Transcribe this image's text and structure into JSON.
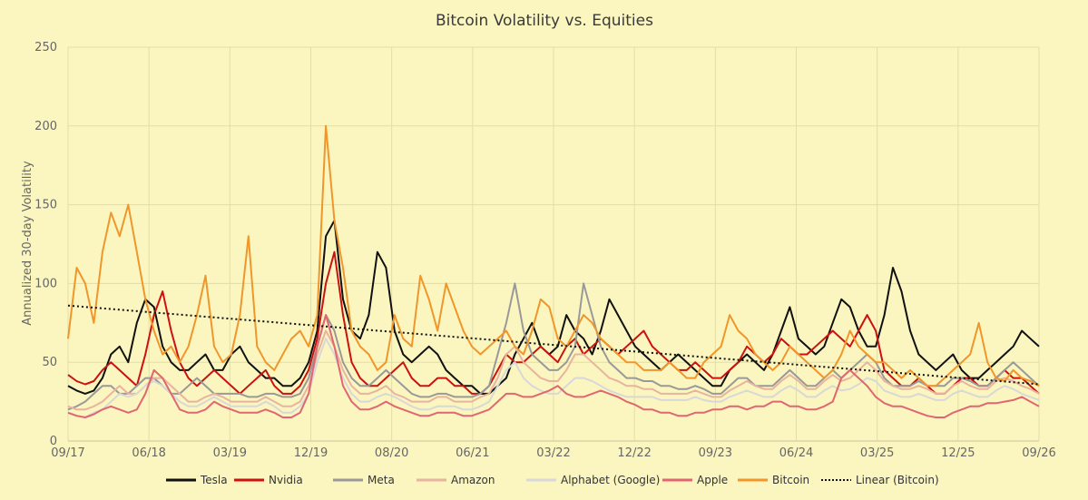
{
  "chart_data": {
    "type": "line",
    "title": "Bitcoin Volatility vs. Equities",
    "ylabel": "Annualized 30-day Volatility",
    "xlabel": "",
    "ylim": [
      0,
      250
    ],
    "yticks": [
      0,
      50,
      100,
      150,
      200,
      250
    ],
    "x_tick_labels": [
      "09/17",
      "06/18",
      "03/19",
      "12/19",
      "08/20",
      "06/21",
      "03/22",
      "12/22",
      "09/23",
      "06/24",
      "03/25",
      "12/25",
      "09/26"
    ],
    "grid": true,
    "legend_position": "bottom",
    "series": [
      {
        "name": "Tesla",
        "color": "#111111",
        "dash": "solid",
        "values": [
          35,
          32,
          30,
          32,
          40,
          55,
          60,
          50,
          75,
          90,
          85,
          60,
          50,
          45,
          45,
          50,
          55,
          45,
          45,
          55,
          60,
          50,
          45,
          40,
          40,
          35,
          35,
          40,
          50,
          70,
          130,
          140,
          90,
          70,
          65,
          80,
          120,
          110,
          70,
          55,
          50,
          55,
          60,
          55,
          45,
          40,
          35,
          35,
          30,
          30,
          35,
          40,
          55,
          65,
          75,
          60,
          55,
          60,
          80,
          70,
          65,
          55,
          70,
          90,
          80,
          70,
          60,
          55,
          50,
          45,
          50,
          55,
          50,
          45,
          40,
          35,
          35,
          45,
          50,
          55,
          50,
          45,
          55,
          70,
          85,
          65,
          60,
          55,
          60,
          75,
          90,
          85,
          70,
          60,
          60,
          80,
          110,
          95,
          70,
          55,
          50,
          45,
          50,
          55,
          45,
          40,
          40,
          45,
          50,
          55,
          60,
          70,
          65,
          60
        ]
      },
      {
        "name": "Nvidia",
        "color": "#cc1111",
        "dash": "solid",
        "values": [
          42,
          38,
          36,
          38,
          45,
          50,
          45,
          40,
          35,
          55,
          80,
          95,
          70,
          50,
          40,
          35,
          40,
          45,
          40,
          35,
          30,
          35,
          40,
          45,
          35,
          30,
          30,
          35,
          45,
          65,
          100,
          120,
          80,
          50,
          40,
          35,
          35,
          40,
          45,
          50,
          40,
          35,
          35,
          40,
          40,
          35,
          35,
          30,
          30,
          35,
          45,
          55,
          50,
          50,
          55,
          60,
          55,
          50,
          60,
          65,
          55,
          60,
          65,
          60,
          55,
          60,
          65,
          70,
          60,
          55,
          50,
          45,
          45,
          50,
          45,
          40,
          40,
          45,
          50,
          60,
          55,
          50,
          55,
          65,
          60,
          55,
          55,
          60,
          65,
          70,
          65,
          60,
          70,
          80,
          70,
          45,
          40,
          35,
          35,
          40,
          35,
          30,
          30,
          35,
          40,
          40,
          35,
          35,
          40,
          45,
          40,
          40,
          35,
          30
        ]
      },
      {
        "name": "Meta",
        "color": "#999999",
        "dash": "solid",
        "values": [
          20,
          22,
          25,
          30,
          35,
          35,
          30,
          30,
          35,
          40,
          40,
          35,
          30,
          30,
          35,
          40,
          35,
          30,
          30,
          30,
          30,
          28,
          28,
          30,
          30,
          28,
          28,
          30,
          40,
          60,
          80,
          70,
          50,
          40,
          35,
          35,
          40,
          45,
          40,
          35,
          30,
          28,
          28,
          30,
          30,
          28,
          28,
          28,
          30,
          35,
          55,
          75,
          100,
          70,
          55,
          50,
          45,
          45,
          50,
          60,
          100,
          80,
          60,
          50,
          45,
          40,
          40,
          38,
          38,
          35,
          35,
          33,
          33,
          35,
          33,
          30,
          30,
          35,
          40,
          40,
          35,
          35,
          35,
          40,
          45,
          40,
          35,
          35,
          40,
          45,
          40,
          45,
          50,
          55,
          50,
          40,
          35,
          35,
          35,
          38,
          35,
          35,
          35,
          40,
          40,
          38,
          35,
          35,
          40,
          45,
          50,
          45,
          40,
          35
        ]
      },
      {
        "name": "Amazon",
        "color": "#e8b4a0",
        "dash": "solid",
        "values": [
          22,
          20,
          20,
          22,
          25,
          30,
          35,
          30,
          30,
          35,
          40,
          40,
          35,
          30,
          25,
          25,
          28,
          30,
          28,
          25,
          25,
          25,
          25,
          28,
          25,
          22,
          22,
          25,
          35,
          55,
          70,
          60,
          45,
          35,
          30,
          30,
          32,
          35,
          30,
          28,
          25,
          25,
          25,
          28,
          28,
          25,
          25,
          25,
          28,
          30,
          40,
          55,
          60,
          50,
          45,
          40,
          38,
          38,
          45,
          55,
          55,
          50,
          45,
          40,
          38,
          35,
          35,
          33,
          33,
          30,
          30,
          30,
          30,
          32,
          30,
          28,
          28,
          32,
          35,
          38,
          35,
          33,
          33,
          38,
          42,
          38,
          33,
          33,
          38,
          42,
          38,
          40,
          45,
          50,
          45,
          38,
          35,
          33,
          33,
          35,
          33,
          30,
          30,
          35,
          38,
          35,
          33,
          33,
          38,
          40,
          38,
          35,
          33,
          30
        ]
      },
      {
        "name": "Alphabet (Google)",
        "color": "#d8d8d8",
        "dash": "solid",
        "values": [
          18,
          16,
          15,
          18,
          20,
          25,
          30,
          28,
          30,
          35,
          38,
          35,
          30,
          25,
          22,
          22,
          25,
          28,
          25,
          22,
          22,
          22,
          22,
          25,
          22,
          18,
          18,
          22,
          30,
          50,
          65,
          55,
          40,
          30,
          25,
          25,
          28,
          30,
          28,
          25,
          22,
          20,
          20,
          22,
          22,
          22,
          20,
          20,
          22,
          25,
          35,
          45,
          50,
          40,
          35,
          32,
          30,
          30,
          35,
          40,
          40,
          38,
          35,
          32,
          30,
          28,
          28,
          28,
          28,
          26,
          26,
          26,
          26,
          28,
          26,
          25,
          25,
          28,
          30,
          32,
          30,
          28,
          28,
          32,
          35,
          32,
          28,
          28,
          32,
          35,
          32,
          33,
          36,
          40,
          38,
          32,
          30,
          28,
          28,
          30,
          28,
          26,
          26,
          30,
          32,
          30,
          28,
          28,
          32,
          35,
          33,
          30,
          28,
          26
        ]
      },
      {
        "name": "Apple",
        "color": "#e06672",
        "dash": "solid",
        "values": [
          18,
          16,
          15,
          17,
          20,
          22,
          20,
          18,
          20,
          30,
          45,
          40,
          30,
          20,
          18,
          18,
          20,
          25,
          22,
          20,
          18,
          18,
          18,
          20,
          18,
          15,
          15,
          18,
          30,
          60,
          80,
          60,
          35,
          25,
          20,
          20,
          22,
          25,
          22,
          20,
          18,
          16,
          16,
          18,
          18,
          18,
          16,
          16,
          18,
          20,
          25,
          30,
          30,
          28,
          28,
          30,
          32,
          35,
          30,
          28,
          28,
          30,
          32,
          30,
          28,
          25,
          23,
          20,
          20,
          18,
          18,
          16,
          16,
          18,
          18,
          20,
          20,
          22,
          22,
          20,
          22,
          22,
          25,
          25,
          22,
          22,
          20,
          20,
          22,
          25,
          40,
          45,
          40,
          35,
          28,
          24,
          22,
          22,
          20,
          18,
          16,
          15,
          15,
          18,
          20,
          22,
          22,
          24,
          24,
          25,
          26,
          28,
          25,
          22
        ]
      },
      {
        "name": "Bitcoin",
        "color": "#f0962a",
        "dash": "solid",
        "values": [
          65,
          110,
          100,
          75,
          120,
          145,
          130,
          150,
          120,
          90,
          70,
          55,
          60,
          50,
          60,
          80,
          105,
          60,
          50,
          55,
          80,
          130,
          60,
          50,
          45,
          55,
          65,
          70,
          60,
          80,
          200,
          140,
          110,
          70,
          60,
          55,
          45,
          50,
          80,
          65,
          60,
          105,
          90,
          70,
          100,
          85,
          70,
          60,
          55,
          60,
          65,
          70,
          60,
          55,
          70,
          90,
          85,
          65,
          60,
          70,
          80,
          75,
          65,
          60,
          55,
          50,
          50,
          45,
          45,
          45,
          50,
          45,
          40,
          40,
          50,
          55,
          60,
          80,
          70,
          65,
          55,
          50,
          45,
          50,
          60,
          55,
          50,
          45,
          40,
          45,
          55,
          70,
          60,
          55,
          50,
          50,
          45,
          40,
          45,
          40,
          35,
          35,
          40,
          45,
          50,
          55,
          75,
          50,
          40,
          38,
          45,
          40,
          38,
          35
        ]
      },
      {
        "name": "Linear (Bitcoin)",
        "color": "#111111",
        "dash": "dotted",
        "values": [
          86,
          36
        ]
      }
    ]
  }
}
